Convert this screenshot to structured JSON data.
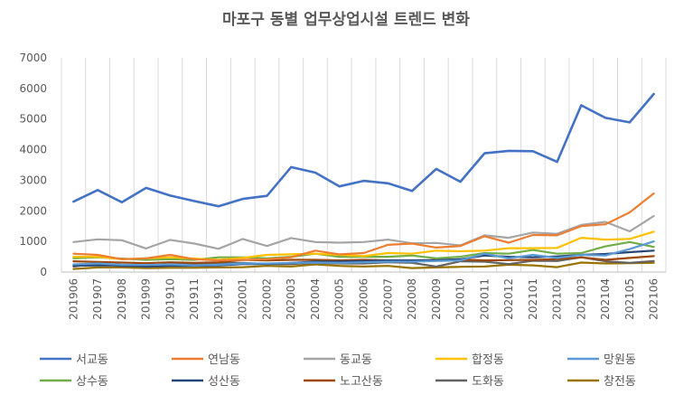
{
  "chart_data": {
    "type": "line",
    "title": "마포구 동별 업무상업시설 트렌드 변화",
    "xlabel": "",
    "ylabel": "",
    "ylim": [
      0,
      7000
    ],
    "yticks": [
      0,
      1000,
      2000,
      3000,
      4000,
      5000,
      6000,
      7000
    ],
    "grid": "vertical",
    "legend_position": "bottom",
    "categories": [
      "201906",
      "201907",
      "201908",
      "201909",
      "201910",
      "201911",
      "201912",
      "202001",
      "202002",
      "202003",
      "202004",
      "202005",
      "202006",
      "202007",
      "202008",
      "202009",
      "202010",
      "202011",
      "202012",
      "202101",
      "202102",
      "202103",
      "202104",
      "202105",
      "202106"
    ],
    "series": [
      {
        "name": "서교동",
        "color": "#4472C4",
        "values": [
          2300,
          2680,
          2280,
          2750,
          2500,
          2320,
          2150,
          2390,
          2490,
          3430,
          3250,
          2800,
          2980,
          2900,
          2650,
          3370,
          2950,
          3880,
          3960,
          3950,
          3600,
          5450,
          5040,
          4890,
          5820
        ]
      },
      {
        "name": "연남동",
        "color": "#ED7D31",
        "values": [
          600,
          560,
          420,
          450,
          560,
          420,
          380,
          400,
          420,
          480,
          700,
          580,
          620,
          890,
          930,
          800,
          850,
          1170,
          960,
          1210,
          1200,
          1500,
          1560,
          1950,
          2570
        ]
      },
      {
        "name": "동교동",
        "color": "#A5A5A5",
        "values": [
          980,
          1070,
          1040,
          770,
          1050,
          930,
          760,
          1080,
          850,
          1110,
          980,
          960,
          980,
          1060,
          940,
          950,
          870,
          1200,
          1120,
          1290,
          1250,
          1540,
          1640,
          1330,
          1830
        ]
      },
      {
        "name": "합정동",
        "color": "#FFC000",
        "values": [
          500,
          500,
          420,
          450,
          480,
          440,
          400,
          460,
          560,
          580,
          600,
          560,
          520,
          620,
          600,
          700,
          680,
          700,
          780,
          780,
          790,
          1120,
          1060,
          1080,
          1320
        ]
      },
      {
        "name": "망원동",
        "color": "#5B9BD5",
        "values": [
          250,
          280,
          240,
          230,
          250,
          220,
          240,
          280,
          280,
          300,
          310,
          300,
          320,
          340,
          340,
          360,
          380,
          600,
          450,
          560,
          460,
          560,
          540,
          750,
          1000
        ]
      },
      {
        "name": "상수동",
        "color": "#70AD47",
        "values": [
          450,
          480,
          440,
          400,
          420,
          400,
          480,
          480,
          450,
          500,
          600,
          500,
          500,
          500,
          540,
          450,
          500,
          620,
          600,
          720,
          600,
          620,
          840,
          980,
          820
        ]
      },
      {
        "name": "성산동",
        "color": "#264478",
        "values": [
          210,
          220,
          220,
          180,
          200,
          200,
          220,
          260,
          260,
          300,
          340,
          340,
          360,
          380,
          380,
          390,
          420,
          540,
          500,
          480,
          510,
          560,
          590,
          650,
          700
        ]
      },
      {
        "name": "노고산동",
        "color": "#9E480E",
        "values": [
          350,
          330,
          310,
          290,
          320,
          300,
          320,
          400,
          380,
          400,
          400,
          380,
          400,
          380,
          360,
          400,
          410,
          380,
          390,
          400,
          420,
          480,
          400,
          460,
          520
        ]
      },
      {
        "name": "도화동",
        "color": "#636363",
        "values": [
          180,
          280,
          190,
          200,
          260,
          250,
          290,
          300,
          260,
          260,
          300,
          280,
          280,
          320,
          300,
          180,
          350,
          340,
          260,
          370,
          360,
          480,
          350,
          300,
          360
        ]
      },
      {
        "name": "창전동",
        "color": "#997300",
        "values": [
          100,
          150,
          150,
          130,
          140,
          140,
          150,
          160,
          200,
          180,
          250,
          200,
          180,
          200,
          130,
          150,
          170,
          180,
          240,
          220,
          160,
          310,
          280,
          290,
          300
        ]
      }
    ]
  }
}
